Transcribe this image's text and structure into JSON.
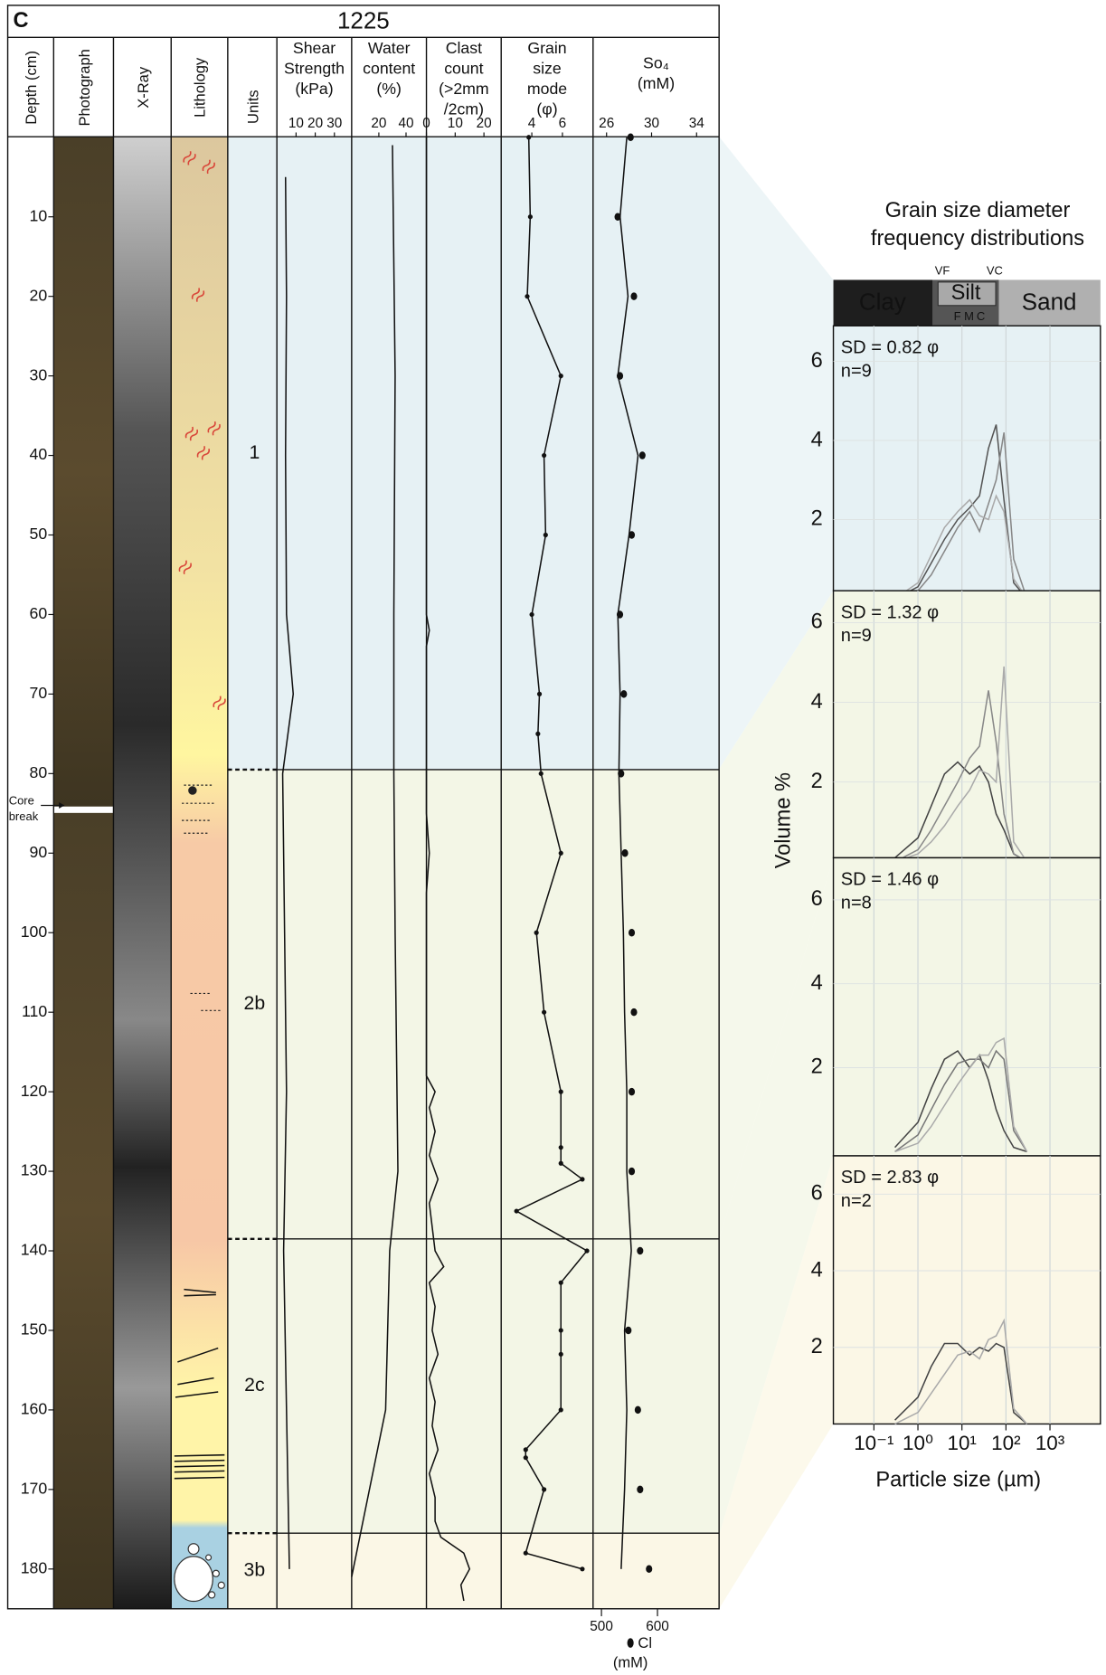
{
  "figure_label": "C",
  "core_title": "1225",
  "depth_axis": {
    "label": "Depth (cm)",
    "ylim": [
      0,
      185
    ],
    "yticks": [
      10,
      20,
      30,
      40,
      50,
      60,
      70,
      80,
      90,
      100,
      110,
      120,
      130,
      140,
      150,
      160,
      170,
      180
    ]
  },
  "column_headers": {
    "photograph": "Photograph",
    "xray": "X-Ray",
    "lithology": "Lithology"
  },
  "units": {
    "label": "Units",
    "names": [
      "1",
      "2b",
      "2c",
      "3b"
    ],
    "boundaries": [
      79.5,
      138.5,
      175.5
    ]
  },
  "core_break": {
    "label": [
      "Core",
      "break"
    ],
    "depth": 84
  },
  "chart_data": [
    {
      "type": "line",
      "title": [
        "Shear",
        "Strength",
        "(kPa)"
      ],
      "xlim": [
        0,
        39
      ],
      "xticks": [
        10,
        20,
        30
      ],
      "depths": [
        5,
        20,
        40,
        60,
        70,
        80,
        100,
        120,
        140,
        160,
        180
      ],
      "values": [
        4.5,
        5,
        4.5,
        5,
        8.5,
        3,
        4,
        5,
        3.5,
        5,
        6.5
      ]
    },
    {
      "type": "line",
      "title": [
        "Water",
        "content",
        "(%)"
      ],
      "xlim": [
        0,
        55
      ],
      "xticks": [
        20,
        40
      ],
      "depths": [
        1,
        30,
        60,
        80,
        100,
        130,
        140,
        160,
        181
      ],
      "values": [
        30,
        32,
        31,
        31,
        32,
        34,
        28,
        25,
        0
      ]
    },
    {
      "type": "line",
      "title": [
        "Clast",
        "count",
        "(>2mm",
        "/2cm)"
      ],
      "xlim": [
        0,
        26
      ],
      "xticks": [
        0,
        10,
        20
      ],
      "depths": [
        0,
        60,
        62,
        64,
        85,
        90,
        95,
        118,
        120,
        122,
        125,
        128,
        131,
        134,
        137,
        140,
        142,
        144,
        147,
        150,
        153,
        156,
        159,
        162,
        165,
        168,
        171,
        174,
        176,
        178,
        180,
        182,
        184
      ],
      "values": [
        0,
        0,
        1,
        0,
        0,
        1,
        0,
        0,
        3,
        1,
        3,
        1,
        4,
        1,
        2,
        3,
        6,
        1,
        3,
        2,
        4,
        1,
        3,
        2,
        4,
        1,
        3,
        3,
        5,
        13,
        15,
        12,
        13
      ]
    },
    {
      "type": "line",
      "title": [
        "Grain",
        "size",
        "mode",
        "(φ)"
      ],
      "xlim": [
        2,
        8
      ],
      "xticks": [
        4,
        6
      ],
      "markers": true,
      "depths": [
        0,
        10,
        20,
        30,
        40,
        50,
        60,
        70,
        75,
        80,
        90,
        100,
        110,
        120,
        127,
        129,
        131,
        135,
        140,
        144,
        150,
        153,
        160,
        165,
        166,
        170,
        178,
        180
      ],
      "values": [
        3.8,
        3.9,
        3.7,
        5.9,
        4.8,
        4.9,
        4.0,
        4.5,
        4.4,
        4.6,
        5.9,
        4.3,
        4.8,
        5.9,
        5.9,
        5.9,
        7.3,
        3.0,
        7.6,
        5.9,
        5.9,
        5.9,
        5.9,
        3.6,
        3.6,
        4.8,
        3.6,
        7.3
      ]
    },
    {
      "type": "line",
      "title": [
        "So₄",
        "(mM)"
      ],
      "xlim": [
        24.8,
        36
      ],
      "xticks": [
        26,
        30,
        34
      ],
      "depths": [
        0,
        10,
        20,
        30,
        40,
        50,
        60,
        70,
        80,
        90,
        100,
        110,
        120,
        130,
        140,
        150,
        160,
        170,
        180
      ],
      "values": [
        27.8,
        27.2,
        27.9,
        27.0,
        28.8,
        28.0,
        27.0,
        27.2,
        27.1,
        27.3,
        27.5,
        27.6,
        27.8,
        27.8,
        28.2,
        27.6,
        27.8,
        27.6,
        27.3
      ],
      "cl": {
        "label": [
          "Cl",
          "(mM)"
        ],
        "xlim": [
          485,
          710
        ],
        "xticks": [
          500,
          600
        ],
        "values": [
          552,
          529,
          558,
          533,
          573,
          554,
          533,
          540,
          535,
          542,
          554,
          558,
          554,
          554,
          569,
          548,
          565,
          569,
          585
        ]
      }
    },
    {
      "type": "gsd",
      "title": [
        "Grain size diameter",
        "frequency distributions"
      ],
      "classes": {
        "clay": "Clay",
        "silt": "Silt",
        "sand": "Sand",
        "vf": "VF",
        "vc": "VC",
        "f": "F",
        "m": "M",
        "c": "C"
      },
      "xlabel": "Particle size (µm)",
      "ylabel": "Volume %",
      "log_x": true,
      "grid": true,
      "x": [
        0.3,
        1,
        2,
        4,
        8,
        15,
        25,
        40,
        60,
        90,
        150,
        300
      ],
      "xlim": [
        0.012,
        14000
      ],
      "xticks": [
        {
          "value": 0.1,
          "label": "10⁻¹"
        },
        {
          "value": 1,
          "label": "10⁰"
        },
        {
          "value": 10,
          "label": "10¹"
        },
        {
          "value": 100,
          "label": "10²"
        },
        {
          "value": 1000,
          "label": "10³"
        }
      ],
      "panels": [
        {
          "sd_label": "SD = 0.82 φ",
          "n_label": "n=9",
          "ylim": [
            0.2,
            6.9
          ],
          "yticks": [
            2,
            4,
            6
          ],
          "background": "#e6f1f4",
          "series": [
            {
              "color": "#555555",
              "values": [
                0,
                0.3,
                0.9,
                1.5,
                2.0,
                2.3,
                2.6,
                3.8,
                4.4,
                2.5,
                0.4,
                0
              ]
            },
            {
              "color": "#888888",
              "values": [
                0,
                0.2,
                0.6,
                1.2,
                1.8,
                2.2,
                1.7,
                2.4,
                3.0,
                4.2,
                1.0,
                0
              ]
            },
            {
              "color": "#aaaaaa",
              "values": [
                0,
                0.4,
                1.1,
                1.8,
                2.2,
                2.5,
                2.1,
                2.0,
                2.6,
                2.2,
                0.5,
                0
              ]
            }
          ]
        },
        {
          "sd_label": "SD = 1.32 φ",
          "n_label": "n=9",
          "ylim": [
            0.1,
            6.8
          ],
          "yticks": [
            2,
            4,
            6
          ],
          "background": "#f3f6e6",
          "series": [
            {
              "color": "#444444",
              "values": [
                0.1,
                0.6,
                1.4,
                2.2,
                2.5,
                2.2,
                2.4,
                2.0,
                1.2,
                0.8,
                0.2,
                0
              ]
            },
            {
              "color": "#888888",
              "values": [
                0,
                0.3,
                0.8,
                1.4,
                2.0,
                2.6,
                2.9,
                4.3,
                3.0,
                1.2,
                0.2,
                0
              ]
            },
            {
              "color": "#aaaaaa",
              "values": [
                0,
                0.2,
                0.5,
                0.9,
                1.4,
                1.8,
                2.3,
                2.2,
                2.0,
                4.9,
                0.5,
                0
              ]
            }
          ]
        },
        {
          "sd_label": "SD = 1.46 φ",
          "n_label": "n=8",
          "ylim": [
            -0.1,
            7
          ],
          "yticks": [
            2,
            4,
            6
          ],
          "background": "#f3f6e6",
          "series": [
            {
              "color": "#444444",
              "values": [
                0.1,
                0.7,
                1.5,
                2.2,
                2.4,
                2.0,
                2.3,
                1.7,
                1.0,
                0.5,
                0.1,
                0
              ]
            },
            {
              "color": "#777777",
              "values": [
                0,
                0.4,
                1.0,
                1.6,
                2.1,
                2.2,
                2.2,
                2.0,
                2.4,
                2.2,
                0.5,
                0
              ]
            },
            {
              "color": "#aaaaaa",
              "values": [
                0,
                0.2,
                0.6,
                1.1,
                1.6,
                2.0,
                2.3,
                2.3,
                2.6,
                2.7,
                0.6,
                0
              ]
            }
          ]
        },
        {
          "sd_label": "SD = 2.83 φ",
          "n_label": "n=2",
          "ylim": [
            0,
            7
          ],
          "yticks": [
            2,
            4,
            6
          ],
          "background": "#fbf7e6",
          "series": [
            {
              "color": "#444444",
              "values": [
                0.1,
                0.7,
                1.5,
                2.1,
                2.1,
                1.8,
                2.0,
                1.9,
                2.1,
                2.0,
                0.3,
                0
              ]
            },
            {
              "color": "#aaaaaa",
              "values": [
                0,
                0.3,
                0.8,
                1.3,
                1.8,
                1.9,
                1.7,
                2.2,
                2.3,
                2.7,
                0.4,
                0
              ]
            }
          ]
        }
      ]
    }
  ]
}
